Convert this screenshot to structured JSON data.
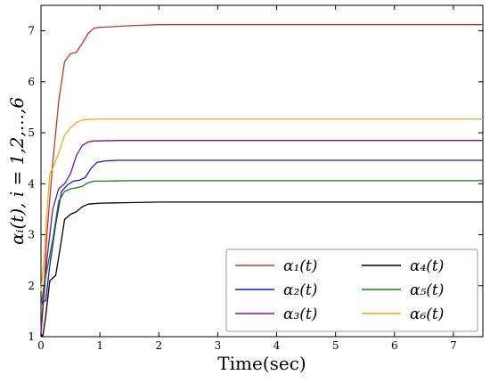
{
  "chart_data": {
    "type": "line",
    "xlabel": "Time(sec)",
    "ylabel": "αᵢ(t), i = 1,2,...,6",
    "xlim": [
      0,
      7.5
    ],
    "ylim": [
      1,
      7.5
    ],
    "xticks": [
      "0",
      "1",
      "2",
      "3",
      "4",
      "5",
      "6",
      "7"
    ],
    "yticks": [
      "1",
      "2",
      "3",
      "4",
      "5",
      "6",
      "7"
    ],
    "grid": false,
    "legend_placement": "bottom-right",
    "legend_columns": 2,
    "series": [
      {
        "name": "α₁(t)",
        "color": "#c0392b",
        "x": [
          0,
          0.05,
          0.1,
          0.2,
          0.3,
          0.4,
          0.5,
          0.6,
          0.7,
          0.8,
          0.9,
          1.0,
          1.2,
          1.5,
          2.0,
          7.5
        ],
        "y": [
          1.1,
          1.9,
          3.0,
          4.4,
          5.6,
          6.4,
          6.55,
          6.58,
          6.75,
          6.95,
          7.05,
          7.07,
          7.08,
          7.1,
          7.12,
          7.12
        ]
      },
      {
        "name": "α₂(t)",
        "color": "#1a1acc",
        "x": [
          0,
          0.03,
          0.08,
          0.15,
          0.25,
          0.35,
          0.45,
          0.55,
          0.65,
          0.75,
          0.85,
          0.95,
          1.1,
          1.3,
          1.6,
          2.0,
          7.5
        ],
        "y": [
          1.6,
          1.7,
          1.7,
          2.4,
          3.2,
          3.85,
          3.98,
          4.05,
          4.07,
          4.12,
          4.3,
          4.42,
          4.45,
          4.46,
          4.46,
          4.46,
          4.46
        ]
      },
      {
        "name": "α₃(t)",
        "color": "#6a1a8a",
        "x": [
          0,
          0.03,
          0.1,
          0.2,
          0.3,
          0.4,
          0.5,
          0.6,
          0.7,
          0.8,
          0.9,
          1.0,
          1.3,
          2.0,
          7.5
        ],
        "y": [
          1.05,
          1.5,
          2.5,
          3.5,
          3.9,
          4.0,
          4.2,
          4.55,
          4.75,
          4.82,
          4.84,
          4.84,
          4.85,
          4.85,
          4.85
        ]
      },
      {
        "name": "α₄(t)",
        "color": "#000000",
        "x": [
          0,
          0.03,
          0.08,
          0.15,
          0.25,
          0.32,
          0.4,
          0.5,
          0.6,
          0.7,
          0.8,
          1.0,
          1.5,
          2.0,
          7.5
        ],
        "y": [
          1.05,
          1.0,
          1.4,
          2.1,
          2.2,
          2.7,
          3.3,
          3.4,
          3.45,
          3.55,
          3.6,
          3.62,
          3.63,
          3.64,
          3.64
        ]
      },
      {
        "name": "α₅(t)",
        "color": "#1e7b1e",
        "x": [
          0,
          0.05,
          0.1,
          0.2,
          0.3,
          0.4,
          0.5,
          0.6,
          0.7,
          0.8,
          0.9,
          1.0,
          1.5,
          2.0,
          7.5
        ],
        "y": [
          1.6,
          2.0,
          2.3,
          2.9,
          3.65,
          3.85,
          3.9,
          3.92,
          3.95,
          4.02,
          4.05,
          4.05,
          4.06,
          4.06,
          4.06
        ]
      },
      {
        "name": "α₆(t)",
        "color": "#e0b020",
        "x": [
          0,
          0.05,
          0.1,
          0.15,
          0.2,
          0.3,
          0.4,
          0.5,
          0.6,
          0.7,
          0.8,
          1.0,
          1.5,
          2.0,
          7.5
        ],
        "y": [
          1.9,
          2.5,
          3.4,
          4.2,
          4.3,
          4.6,
          4.95,
          5.1,
          5.2,
          5.25,
          5.26,
          5.27,
          5.27,
          5.27,
          5.27
        ]
      }
    ]
  }
}
